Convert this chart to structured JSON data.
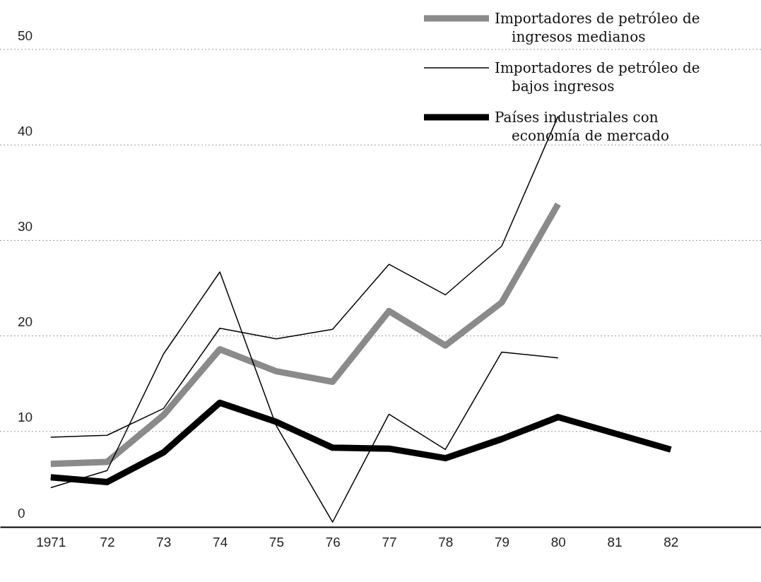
{
  "chart_data": {
    "type": "line",
    "x": [
      1971,
      1972,
      1973,
      1974,
      1975,
      1976,
      1977,
      1978,
      1979,
      1980,
      1981,
      1982
    ],
    "xlim": [
      1970.1,
      1983.6
    ],
    "xticks": [
      {
        "value": 1971,
        "label": "1971"
      },
      {
        "value": 1972,
        "label": "72"
      },
      {
        "value": 1973,
        "label": "73"
      },
      {
        "value": 1974,
        "label": "74"
      },
      {
        "value": 1975,
        "label": "75"
      },
      {
        "value": 1976,
        "label": "76"
      },
      {
        "value": 1977,
        "label": "77"
      },
      {
        "value": 1978,
        "label": "78"
      },
      {
        "value": 1979,
        "label": "79"
      },
      {
        "value": 1980,
        "label": "80"
      },
      {
        "value": 1981,
        "label": "81"
      },
      {
        "value": 1982,
        "label": "82"
      }
    ],
    "ylim": [
      0,
      50
    ],
    "yticks": [
      0,
      10,
      20,
      30,
      40,
      50
    ],
    "grid": "y",
    "legend": "top right",
    "marker": "none",
    "line_style": "solid",
    "series": [
      {
        "color": "#000000",
        "values": [
          9.4,
          9.6,
          12.4,
          20.8,
          19.7,
          20.7,
          27.5,
          24.3,
          29.4,
          43,
          null,
          null
        ]
      },
      {
        "name": "Importadores de petróleo de ingresos medianos",
        "color": "#8a8a8a",
        "values": [
          6.6,
          6.8,
          11.7,
          18.6,
          16.3,
          15.2,
          22.6,
          19.0,
          23.5,
          33.8,
          null,
          null
        ]
      },
      {
        "name": "Importadores de petróleo de bajos ingresos",
        "color": "#000000",
        "values": [
          4.1,
          5.9,
          18.1,
          26.7,
          10.6,
          0.5,
          11.8,
          8.1,
          18.3,
          17.7,
          null,
          null
        ]
      },
      {
        "name": "Países industriales con economía de mercado",
        "color": "#000000",
        "values": [
          5.2,
          4.7,
          7.8,
          13.0,
          11.0,
          8.3,
          8.2,
          7.2,
          9.2,
          11.5,
          9.8,
          8.1
        ]
      }
    ]
  }
}
